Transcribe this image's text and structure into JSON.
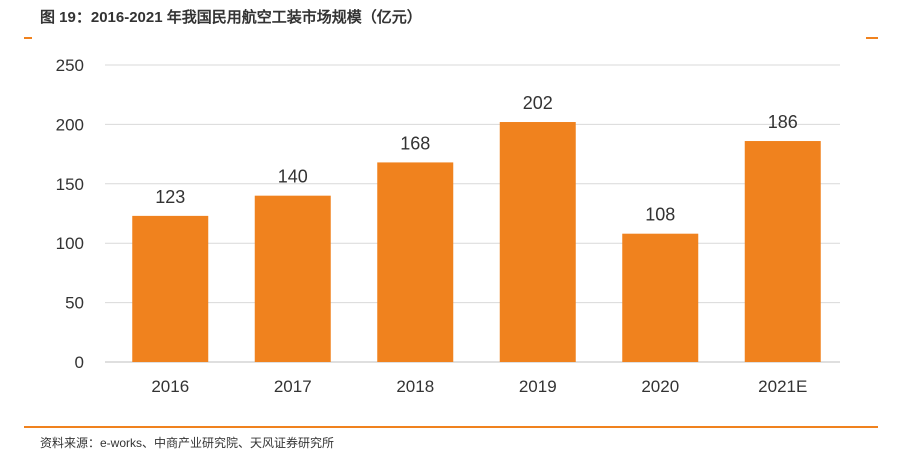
{
  "title": "图 19：2016-2021 年我国民用航空工装市场规模（亿元）",
  "source": "资料来源：e-works、中商产业研究院、天风证券研究所",
  "colors": {
    "bar": "#f0821e",
    "accent": "#f0821e",
    "grid": "#d9d9d9",
    "text": "#333333"
  },
  "chart_data": {
    "type": "bar",
    "categories": [
      "2016",
      "2017",
      "2018",
      "2019",
      "2020",
      "2021E"
    ],
    "values": [
      123,
      140,
      168,
      202,
      108,
      186
    ],
    "data_labels": [
      "123",
      "140",
      "168",
      "202",
      "108",
      "186"
    ],
    "ylim": [
      0,
      250
    ],
    "yticks": [
      0,
      50,
      100,
      150,
      200,
      250
    ],
    "grid": true,
    "legend": "none"
  }
}
